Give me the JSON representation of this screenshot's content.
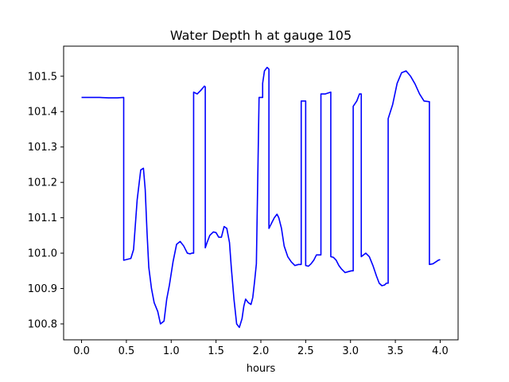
{
  "chart_data": {
    "type": "line",
    "title": "Water Depth h at gauge 105",
    "xlabel": "hours",
    "ylabel": "",
    "xlim": [
      -0.2,
      4.2
    ],
    "ylim": [
      100.755,
      101.585
    ],
    "x_ticks": [
      "0.0",
      "0.5",
      "1.0",
      "1.5",
      "2.0",
      "2.5",
      "3.0",
      "3.5",
      "4.0"
    ],
    "y_ticks": [
      "100.8",
      "100.9",
      "101.0",
      "101.1",
      "101.2",
      "101.3",
      "101.4",
      "101.5"
    ],
    "grid": false,
    "series": [
      {
        "color": "#0000ff",
        "x": [
          0.0,
          0.1,
          0.2,
          0.3,
          0.4,
          0.47,
          0.47,
          0.55,
          0.58,
          0.62,
          0.66,
          0.69,
          0.71,
          0.73,
          0.75,
          0.78,
          0.81,
          0.85,
          0.88,
          0.92,
          0.95,
          0.98,
          1.02,
          1.06,
          1.1,
          1.14,
          1.18,
          1.21,
          1.23,
          1.25,
          1.25,
          1.29,
          1.33,
          1.37,
          1.38,
          1.38,
          1.4,
          1.43,
          1.47,
          1.5,
          1.53,
          1.56,
          1.59,
          1.62,
          1.65,
          1.67,
          1.7,
          1.73,
          1.76,
          1.79,
          1.81,
          1.83,
          1.86,
          1.89,
          1.91,
          1.93,
          1.95,
          1.98,
          2.02,
          2.02,
          2.04,
          2.07,
          2.09,
          2.09,
          2.12,
          2.15,
          2.18,
          2.2,
          2.23,
          2.26,
          2.3,
          2.34,
          2.38,
          2.42,
          2.45,
          2.45,
          2.5,
          2.5,
          2.53,
          2.56,
          2.59,
          2.62,
          2.67,
          2.67,
          2.72,
          2.78,
          2.78,
          2.81,
          2.84,
          2.87,
          2.9,
          2.94,
          2.98,
          3.01,
          3.03,
          3.03,
          3.07,
          3.1,
          3.12,
          3.12,
          3.17,
          3.21,
          3.25,
          3.29,
          3.32,
          3.35,
          3.38,
          3.4,
          3.42,
          3.42,
          3.47,
          3.52,
          3.57,
          3.62,
          3.67,
          3.72,
          3.77,
          3.82,
          3.88,
          3.88,
          3.92,
          3.95,
          3.98,
          4.0
        ],
        "y": [
          101.44,
          101.44,
          101.44,
          101.439,
          101.439,
          101.44,
          100.98,
          100.985,
          101.01,
          101.15,
          101.235,
          101.24,
          101.18,
          101.06,
          100.96,
          100.9,
          100.86,
          100.835,
          100.8,
          100.808,
          100.87,
          100.91,
          100.975,
          101.025,
          101.033,
          101.02,
          101.0,
          100.998,
          101.0,
          101.0,
          101.455,
          101.45,
          101.46,
          101.472,
          101.47,
          101.015,
          101.03,
          101.05,
          101.06,
          101.058,
          101.045,
          101.045,
          101.075,
          101.07,
          101.03,
          100.96,
          100.87,
          100.8,
          100.79,
          100.815,
          100.85,
          100.87,
          100.86,
          100.855,
          100.875,
          100.92,
          100.97,
          101.44,
          101.44,
          101.48,
          101.515,
          101.525,
          101.52,
          101.07,
          101.085,
          101.1,
          101.11,
          101.1,
          101.07,
          101.02,
          100.99,
          100.975,
          100.965,
          100.968,
          100.968,
          101.43,
          101.43,
          100.965,
          100.963,
          100.97,
          100.98,
          100.995,
          100.995,
          101.45,
          101.45,
          101.455,
          100.99,
          100.988,
          100.98,
          100.965,
          100.955,
          100.945,
          100.948,
          100.95,
          100.95,
          101.415,
          101.43,
          101.45,
          101.45,
          100.99,
          101.0,
          100.99,
          100.965,
          100.935,
          100.915,
          100.908,
          100.91,
          100.915,
          100.915,
          101.38,
          101.42,
          101.48,
          101.51,
          101.515,
          101.5,
          101.478,
          101.45,
          101.43,
          101.428,
          100.968,
          100.97,
          100.975,
          100.98,
          100.982
        ]
      }
    ]
  }
}
